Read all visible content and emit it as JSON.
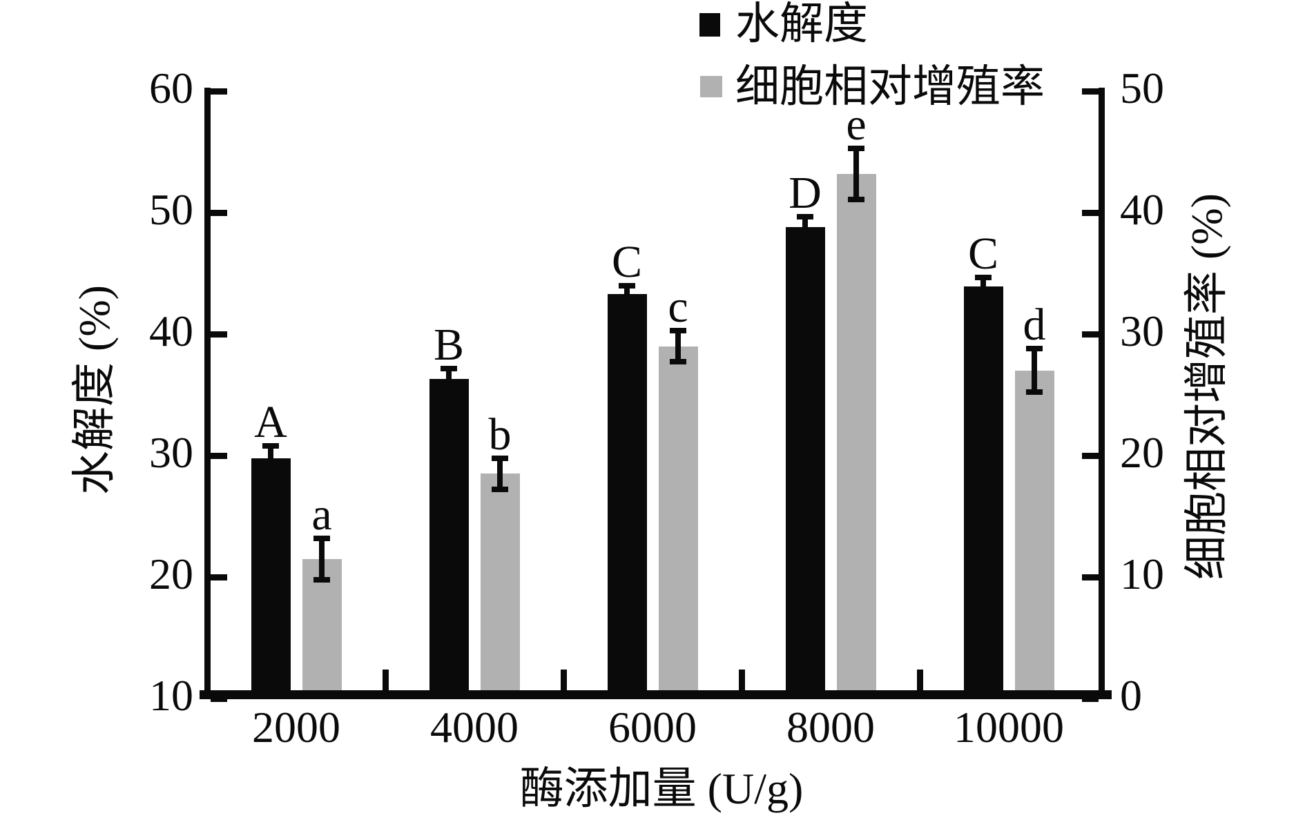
{
  "chart_data": {
    "type": "bar",
    "title": "",
    "categories": [
      "2000",
      "4000",
      "6000",
      "8000",
      "10000"
    ],
    "xlabel": "酶添加量 (U/g)",
    "grid": false,
    "legend_position": "top-center",
    "left_axis": {
      "label": "水解度 (%)",
      "min": 10,
      "max": 60,
      "ticks": [
        10,
        20,
        30,
        40,
        50,
        60
      ]
    },
    "right_axis": {
      "label": "细胞相对增殖率 (%)",
      "min": 0,
      "max": 50,
      "ticks": [
        0,
        10,
        20,
        30,
        40,
        50
      ]
    },
    "series": [
      {
        "name": "水解度",
        "axis": "left",
        "color": "#0a0a0a",
        "values": [
          29.8,
          36.3,
          43.3,
          48.8,
          43.9
        ],
        "errors": [
          1.0,
          0.85,
          0.7,
          0.85,
          0.75
        ],
        "sig_labels": [
          "A",
          "B",
          "C",
          "D",
          "C"
        ]
      },
      {
        "name": "细胞相对增殖率",
        "axis": "right",
        "color": "#b1b1b1",
        "values": [
          11.5,
          18.5,
          29.0,
          43.2,
          27.0
        ],
        "errors": [
          1.7,
          1.3,
          1.3,
          2.1,
          1.8
        ],
        "sig_labels": [
          "a",
          "b",
          "c",
          "e",
          "d"
        ]
      }
    ],
    "axis_color": "#0a0a0a"
  }
}
